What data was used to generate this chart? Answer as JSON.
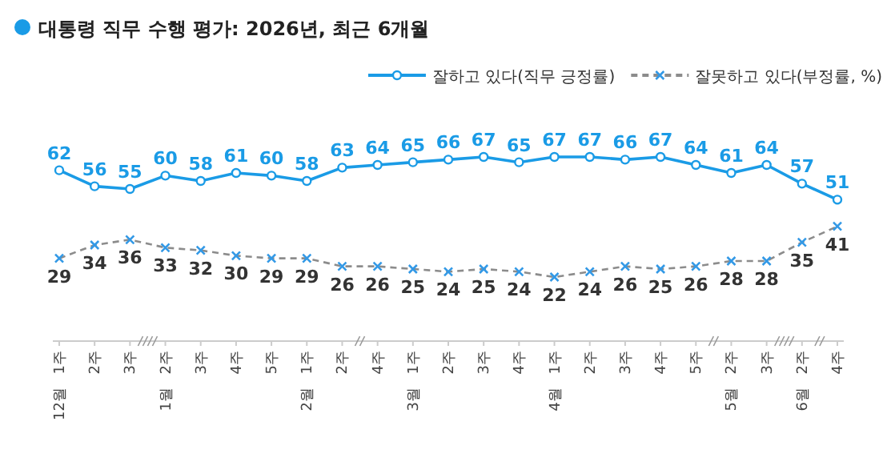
{
  "chart_data": {
    "type": "line",
    "title": "대통령 직무 수행 평가: 2026년, 최근 6개월",
    "categories": [
      "1주 12월",
      "2주",
      "3주",
      "2주 1월",
      "3주",
      "4주",
      "5주",
      "1주 2월",
      "2주",
      "4주",
      "1주 3월",
      "2주",
      "3주",
      "4주",
      "1주 4월",
      "2주",
      "3주",
      "4주",
      "5주",
      "2주 5월",
      "3주",
      "2주 6월",
      "4주"
    ],
    "series": [
      {
        "name": "잘하고 있다(직무 긍정률)",
        "color": "#1a9be6",
        "marker": "circle",
        "line_style": "solid",
        "values": [
          62,
          56,
          55,
          60,
          58,
          61,
          60,
          58,
          63,
          64,
          65,
          66,
          67,
          65,
          67,
          67,
          66,
          67,
          64,
          61,
          64,
          57,
          51
        ]
      },
      {
        "name": "잘못하고 있다(부정률, %)",
        "color": "#8c8c8c",
        "marker": "cross",
        "line_style": "dashed",
        "values": [
          29,
          34,
          36,
          33,
          32,
          30,
          29,
          29,
          26,
          26,
          25,
          24,
          25,
          24,
          22,
          24,
          26,
          25,
          26,
          28,
          28,
          35,
          41
        ]
      }
    ],
    "data_labels": true,
    "legend": "top right"
  }
}
